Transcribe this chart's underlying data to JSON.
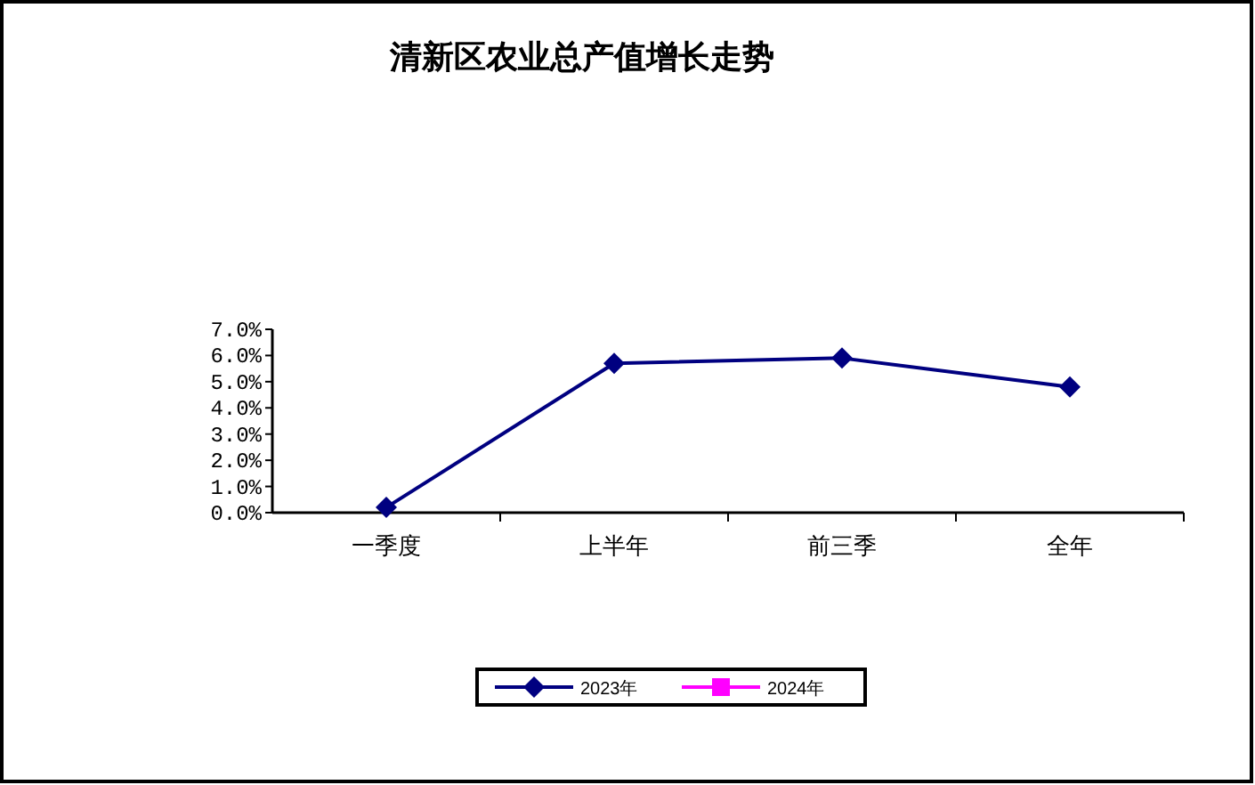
{
  "chart_data": {
    "type": "line",
    "title": "清新区农业总产值增长走势",
    "categories": [
      "一季度",
      "上半年",
      "前三季",
      "全年"
    ],
    "series": [
      {
        "name": "2023年",
        "color": "#000080",
        "values": [
          0.2,
          5.7,
          5.9,
          4.8
        ]
      },
      {
        "name": "2024年",
        "color": "#ff00ff",
        "values": [
          null,
          null,
          null,
          null
        ]
      }
    ],
    "ylim": [
      0,
      7
    ],
    "yticks": [
      {
        "value": 0,
        "label": "0.0%"
      },
      {
        "value": 1,
        "label": "1.0%"
      },
      {
        "value": 2,
        "label": "2.0%"
      },
      {
        "value": 3,
        "label": "3.0%"
      },
      {
        "value": 4,
        "label": "4.0%"
      },
      {
        "value": 5,
        "label": "5.0%"
      },
      {
        "value": 6,
        "label": "6.0%"
      },
      {
        "value": 7,
        "label": "7.0%"
      }
    ],
    "grid": false,
    "legend": "bottom",
    "marker": "diamond",
    "line_style": "solid"
  }
}
